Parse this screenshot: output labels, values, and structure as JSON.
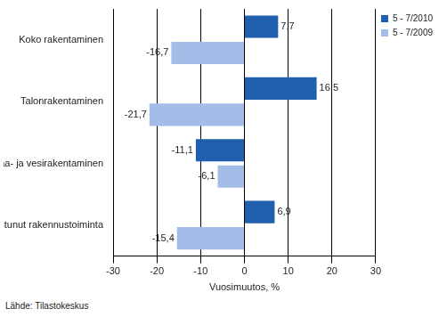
{
  "chart_data": {
    "type": "bar",
    "orientation": "horizontal",
    "categories": [
      "Koko rakentaminen",
      "Talonrakentaminen",
      "Maa- ja vesirakentaminen",
      "Erikoistunut rakennustoiminta"
    ],
    "series": [
      {
        "name": "5 - 7/2010",
        "color": "#1f5fae",
        "values": [
          7.7,
          16.5,
          -11.1,
          6.9
        ],
        "value_labels": [
          "7,7",
          "16,5",
          "-11,1",
          "6,9"
        ]
      },
      {
        "name": "5 - 7/2009",
        "color": "#a4bce8",
        "values": [
          -16.7,
          -21.7,
          -6.1,
          -15.4
        ],
        "value_labels": [
          "-16,7",
          "-21,7",
          "-6,1",
          "-15,4"
        ]
      }
    ],
    "xlabel": "Vuosimuutos, %",
    "xlim": [
      -30,
      30
    ],
    "xticks": [
      -30,
      -20,
      -10,
      0,
      10,
      20,
      30
    ],
    "grid": true,
    "legend": "upper right",
    "data_labels": true,
    "source": "Lähde: Tilastokeskus"
  }
}
